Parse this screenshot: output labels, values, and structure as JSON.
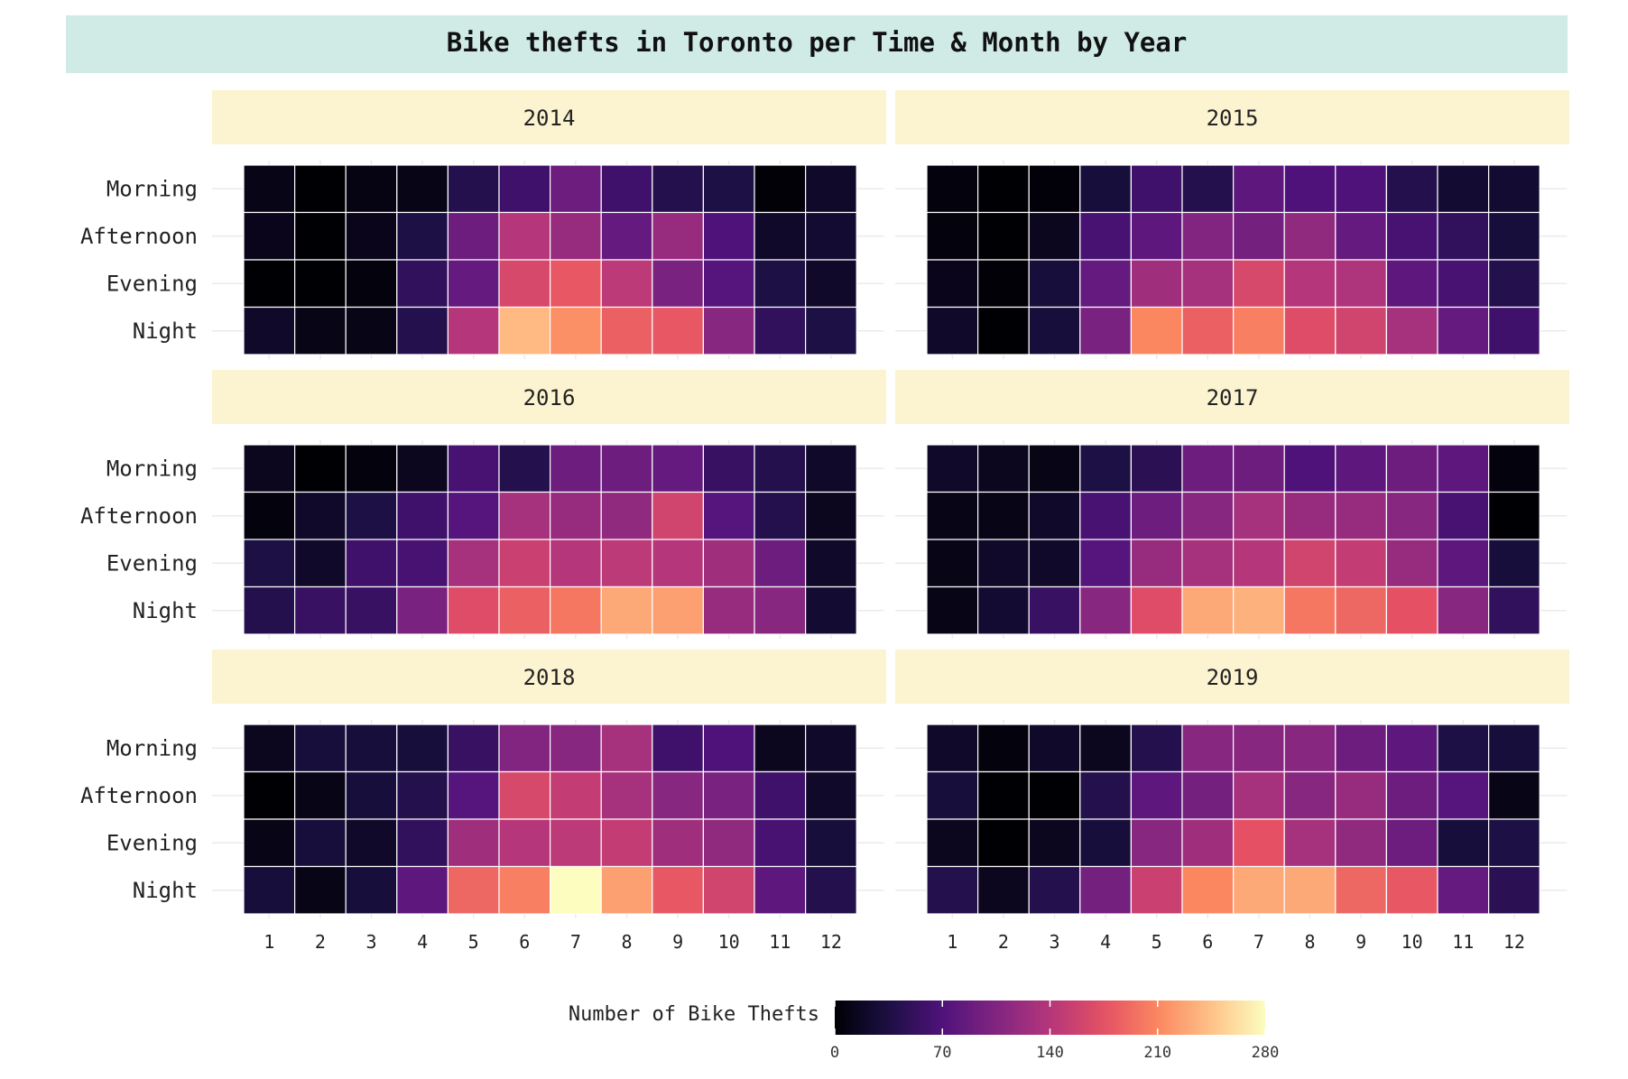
{
  "chart_data": {
    "type": "heatmap",
    "title": "Bike thefts in Toronto per Time & Month by Year",
    "x_categories": [
      "1",
      "2",
      "3",
      "4",
      "5",
      "6",
      "7",
      "8",
      "9",
      "10",
      "11",
      "12"
    ],
    "y_categories": [
      "Morning",
      "Afternoon",
      "Evening",
      "Night"
    ],
    "panels": [
      {
        "label": "2014",
        "values": [
          [
            10,
            0,
            8,
            10,
            40,
            60,
            90,
            60,
            40,
            35,
            2,
            20
          ],
          [
            12,
            0,
            12,
            35,
            90,
            140,
            120,
            85,
            120,
            70,
            20,
            25
          ],
          [
            0,
            0,
            5,
            50,
            85,
            165,
            180,
            145,
            100,
            75,
            35,
            20
          ],
          [
            20,
            10,
            10,
            40,
            140,
            240,
            215,
            185,
            180,
            110,
            50,
            35
          ]
        ]
      },
      {
        "label": "2015",
        "values": [
          [
            5,
            0,
            3,
            30,
            60,
            40,
            80,
            70,
            70,
            40,
            25,
            25
          ],
          [
            5,
            0,
            15,
            65,
            80,
            105,
            95,
            115,
            85,
            65,
            50,
            30
          ],
          [
            12,
            2,
            30,
            85,
            125,
            130,
            165,
            140,
            135,
            80,
            65,
            40
          ],
          [
            20,
            0,
            30,
            100,
            210,
            185,
            205,
            170,
            160,
            130,
            85,
            60
          ]
        ]
      },
      {
        "label": "2016",
        "values": [
          [
            15,
            0,
            5,
            15,
            65,
            40,
            90,
            90,
            85,
            55,
            40,
            20
          ],
          [
            5,
            20,
            35,
            60,
            75,
            130,
            120,
            115,
            160,
            75,
            40,
            15
          ],
          [
            35,
            20,
            60,
            65,
            130,
            155,
            140,
            145,
            140,
            125,
            90,
            20
          ],
          [
            40,
            55,
            55,
            100,
            170,
            185,
            200,
            230,
            225,
            120,
            110,
            25
          ]
        ]
      },
      {
        "label": "2017",
        "values": [
          [
            20,
            15,
            10,
            35,
            45,
            90,
            90,
            70,
            80,
            90,
            80,
            5
          ],
          [
            10,
            10,
            20,
            65,
            90,
            110,
            130,
            120,
            120,
            110,
            65,
            0
          ],
          [
            10,
            20,
            20,
            75,
            120,
            130,
            140,
            160,
            150,
            120,
            80,
            30
          ],
          [
            10,
            25,
            55,
            110,
            170,
            230,
            235,
            200,
            190,
            175,
            110,
            50
          ]
        ]
      },
      {
        "label": "2018",
        "values": [
          [
            15,
            30,
            30,
            30,
            55,
            105,
            110,
            130,
            60,
            70,
            15,
            20
          ],
          [
            0,
            10,
            30,
            40,
            75,
            165,
            150,
            130,
            110,
            100,
            60,
            20
          ],
          [
            10,
            30,
            20,
            50,
            125,
            140,
            145,
            150,
            125,
            115,
            65,
            30
          ],
          [
            30,
            10,
            30,
            80,
            190,
            205,
            280,
            225,
            180,
            160,
            80,
            40
          ]
        ]
      },
      {
        "label": "2019",
        "values": [
          [
            20,
            5,
            20,
            15,
            40,
            110,
            110,
            110,
            90,
            80,
            35,
            30
          ],
          [
            30,
            0,
            0,
            40,
            80,
            95,
            130,
            110,
            120,
            90,
            75,
            10
          ],
          [
            15,
            0,
            15,
            30,
            110,
            125,
            175,
            130,
            115,
            90,
            30,
            35
          ],
          [
            40,
            15,
            40,
            95,
            155,
            210,
            230,
            230,
            190,
            180,
            85,
            45
          ]
        ]
      }
    ],
    "colorbar": {
      "title": "Number of Bike Thefts",
      "min": 0,
      "max": 280,
      "ticks": [
        0,
        70,
        140,
        210,
        280
      ],
      "colormap": "magma"
    }
  }
}
